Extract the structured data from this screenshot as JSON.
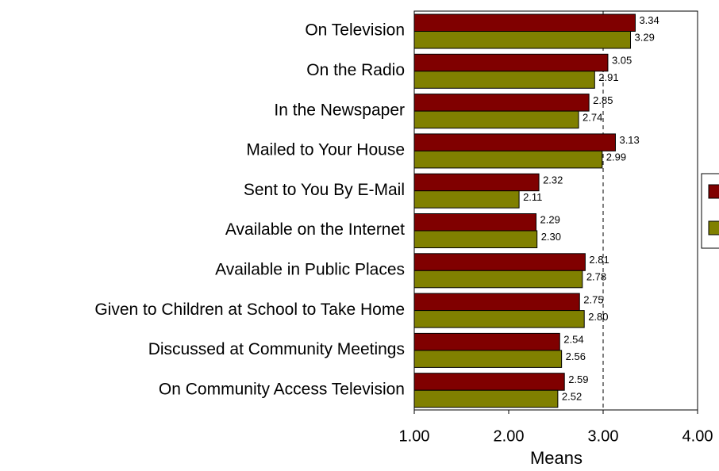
{
  "chart_data": {
    "type": "bar",
    "orientation": "horizontal",
    "x_label": "Means",
    "categories": [
      "On Television",
      "On the Radio",
      "In the Newspaper",
      "Mailed to Your House",
      "Sent to You By E-Mail",
      "Available on the Internet",
      "Available in Public Places",
      "Given to Children at School to Take Home",
      "Discussed at Community Meetings",
      "On Community Access Television"
    ],
    "series": [
      {
        "color": "#800000",
        "values": [
          3.34,
          3.05,
          2.85,
          3.13,
          2.32,
          2.29,
          2.81,
          2.75,
          2.54,
          2.59
        ],
        "value_labels": [
          "3.34",
          "3.05",
          "2.85",
          "3.13",
          "2.32",
          "2.29",
          "2.81",
          "2.75",
          "2.54",
          "2.59"
        ]
      },
      {
        "color": "#808000",
        "values": [
          3.29,
          2.91,
          2.74,
          2.99,
          2.11,
          2.3,
          2.78,
          2.8,
          2.56,
          2.52
        ],
        "value_labels": [
          "3.29",
          "2.91",
          "2.74",
          "2.99",
          "2.11",
          "2.30",
          "2.78",
          "2.80",
          "2.56",
          "2.52"
        ]
      }
    ],
    "xlim": [
      1,
      4
    ],
    "xticks": [
      {
        "value": 1,
        "label": "1.00"
      },
      {
        "value": 2,
        "label": "2.00"
      },
      {
        "value": 3,
        "label": "3.00"
      },
      {
        "value": 4,
        "label": "4.00"
      }
    ],
    "reference_line": 3
  }
}
